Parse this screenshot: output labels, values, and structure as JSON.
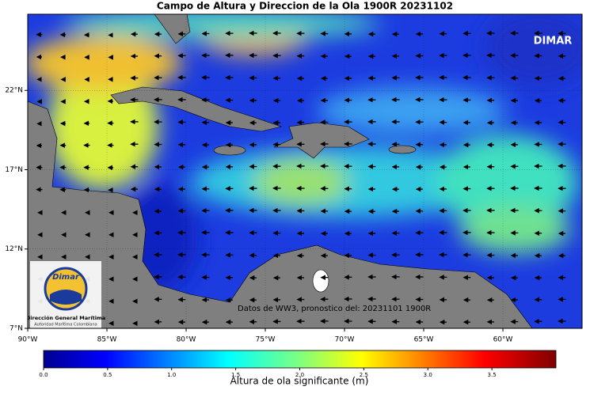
{
  "map": {
    "title": "Campo de Altura y Direccion de la Ola 1900R 20231102",
    "watermark": "DIMAR",
    "source_note": "Datos de WW3, pronostico del: 20231101 1900R",
    "logo": {
      "brand": "Dimar",
      "name": "Dirección General Marítima",
      "subtitle": "Autoridad Marítima Colombiana"
    },
    "lonlim": [
      -90,
      -55
    ],
    "latlim": [
      7,
      26.8
    ],
    "xticks": [
      {
        "value": -90,
        "label": "90°W"
      },
      {
        "value": -85,
        "label": "85°W"
      },
      {
        "value": -80,
        "label": "80°W"
      },
      {
        "value": -75,
        "label": "75°W"
      },
      {
        "value": -70,
        "label": "70°W"
      },
      {
        "value": -65,
        "label": "65°W"
      },
      {
        "value": -60,
        "label": "60°W"
      }
    ],
    "yticks": [
      {
        "value": 7,
        "label": "7°N"
      },
      {
        "value": 12,
        "label": "12°N"
      },
      {
        "value": 17,
        "label": "17°N"
      },
      {
        "value": 22,
        "label": "22°N"
      }
    ],
    "colorbar": {
      "label": "Altura de ola significante (m)",
      "lim": [
        0,
        4
      ],
      "ticks": [
        {
          "value": 0,
          "label": "0.0"
        },
        0.5,
        {
          "value": 1,
          "label": "1.0"
        },
        1.5,
        {
          "value": 2,
          "label": "2.0"
        },
        2.5,
        {
          "value": 3,
          "label": "3.0"
        },
        3.5
      ]
    }
  }
}
